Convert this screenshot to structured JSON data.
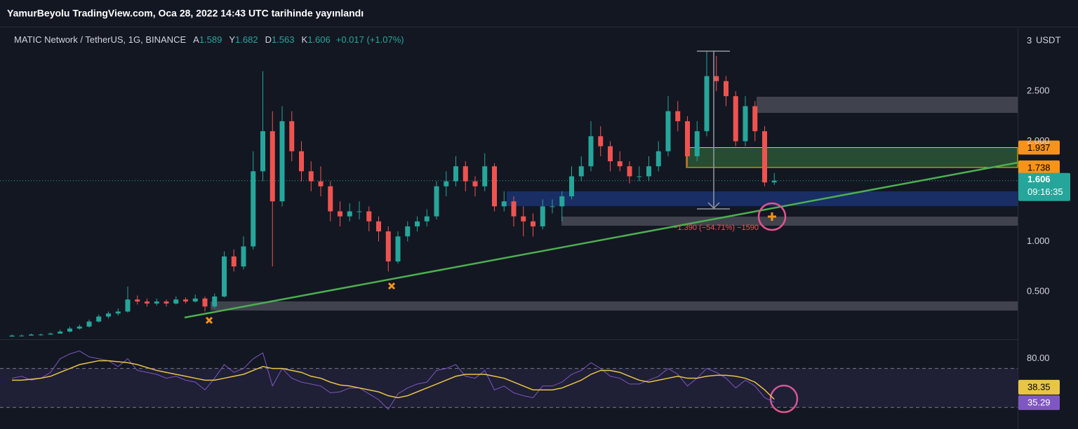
{
  "header": {
    "title": "YamurBeyolu TradingView.com, Oca 28, 2022 14:43 UTC tarihinde yayınlandı"
  },
  "chart_data": {
    "type": "candlestick",
    "title": "MATIC Network / TetherUS, 1G, BINANCE",
    "legend_labels": [
      "A",
      "Y",
      "D",
      "K"
    ],
    "change": "+0.017 (+1.07%)",
    "up_color": "#26a69a",
    "down_color": "#ef5350",
    "ohlc": [
      [
        0.05,
        0.07,
        0.05,
        0.06
      ],
      [
        0.06,
        0.07,
        0.05,
        0.06
      ],
      [
        0.06,
        0.08,
        0.06,
        0.07
      ],
      [
        0.07,
        0.08,
        0.06,
        0.07
      ],
      [
        0.07,
        0.09,
        0.07,
        0.08
      ],
      [
        0.08,
        0.12,
        0.08,
        0.1
      ],
      [
        0.1,
        0.15,
        0.09,
        0.13
      ],
      [
        0.13,
        0.17,
        0.12,
        0.15
      ],
      [
        0.15,
        0.22,
        0.14,
        0.2
      ],
      [
        0.2,
        0.27,
        0.19,
        0.25
      ],
      [
        0.25,
        0.3,
        0.23,
        0.28
      ],
      [
        0.28,
        0.33,
        0.26,
        0.3
      ],
      [
        0.3,
        0.55,
        0.29,
        0.42
      ],
      [
        0.42,
        0.46,
        0.37,
        0.4
      ],
      [
        0.4,
        0.43,
        0.35,
        0.38
      ],
      [
        0.38,
        0.43,
        0.36,
        0.4
      ],
      [
        0.4,
        0.42,
        0.35,
        0.38
      ],
      [
        0.38,
        0.45,
        0.37,
        0.42
      ],
      [
        0.42,
        0.44,
        0.38,
        0.4
      ],
      [
        0.4,
        0.47,
        0.39,
        0.43
      ],
      [
        0.43,
        0.45,
        0.3,
        0.35
      ],
      [
        0.35,
        0.48,
        0.33,
        0.45
      ],
      [
        0.45,
        0.9,
        0.44,
        0.85
      ],
      [
        0.85,
        0.92,
        0.7,
        0.75
      ],
      [
        0.75,
        1.05,
        0.72,
        0.95
      ],
      [
        0.95,
        1.9,
        0.92,
        1.7
      ],
      [
        1.7,
        2.7,
        1.6,
        2.1
      ],
      [
        2.1,
        2.3,
        0.75,
        1.4
      ],
      [
        1.4,
        2.35,
        1.35,
        2.2
      ],
      [
        2.2,
        2.3,
        1.8,
        1.9
      ],
      [
        1.9,
        2.0,
        1.6,
        1.7
      ],
      [
        1.7,
        1.8,
        1.5,
        1.6
      ],
      [
        1.6,
        1.75,
        1.45,
        1.55
      ],
      [
        1.55,
        1.6,
        1.2,
        1.3
      ],
      [
        1.3,
        1.4,
        1.15,
        1.25
      ],
      [
        1.25,
        1.38,
        1.2,
        1.3
      ],
      [
        1.3,
        1.4,
        1.22,
        1.3
      ],
      [
        1.3,
        1.35,
        1.1,
        1.2
      ],
      [
        1.2,
        1.25,
        1.0,
        1.1
      ],
      [
        1.1,
        1.15,
        0.7,
        0.8
      ],
      [
        0.8,
        1.1,
        0.78,
        1.05
      ],
      [
        1.05,
        1.2,
        1.0,
        1.15
      ],
      [
        1.15,
        1.25,
        1.1,
        1.2
      ],
      [
        1.2,
        1.32,
        1.15,
        1.25
      ],
      [
        1.25,
        1.6,
        1.22,
        1.55
      ],
      [
        1.55,
        1.7,
        1.45,
        1.6
      ],
      [
        1.6,
        1.85,
        1.55,
        1.75
      ],
      [
        1.75,
        1.8,
        1.5,
        1.6
      ],
      [
        1.6,
        1.65,
        1.45,
        1.55
      ],
      [
        1.55,
        1.88,
        1.5,
        1.75
      ],
      [
        1.75,
        1.78,
        1.3,
        1.35
      ],
      [
        1.35,
        1.5,
        1.3,
        1.4
      ],
      [
        1.4,
        1.45,
        1.15,
        1.25
      ],
      [
        1.25,
        1.35,
        1.05,
        1.2
      ],
      [
        1.2,
        1.28,
        1.05,
        1.15
      ],
      [
        1.15,
        1.42,
        1.12,
        1.35
      ],
      [
        1.35,
        1.42,
        1.28,
        1.35
      ],
      [
        1.35,
        1.5,
        1.2,
        1.45
      ],
      [
        1.45,
        1.75,
        1.42,
        1.65
      ],
      [
        1.65,
        1.85,
        1.6,
        1.75
      ],
      [
        1.75,
        2.2,
        1.7,
        2.05
      ],
      [
        2.05,
        2.15,
        1.85,
        1.95
      ],
      [
        1.95,
        2.0,
        1.7,
        1.8
      ],
      [
        1.8,
        1.9,
        1.7,
        1.75
      ],
      [
        1.75,
        1.8,
        1.58,
        1.65
      ],
      [
        1.65,
        1.75,
        1.6,
        1.65
      ],
      [
        1.65,
        1.85,
        1.6,
        1.75
      ],
      [
        1.75,
        2.0,
        1.7,
        1.9
      ],
      [
        1.9,
        2.45,
        1.85,
        2.3
      ],
      [
        2.3,
        2.4,
        2.1,
        2.2
      ],
      [
        2.2,
        2.25,
        1.75,
        1.85
      ],
      [
        1.85,
        2.2,
        1.8,
        2.1
      ],
      [
        2.1,
        2.9,
        2.05,
        2.65
      ],
      [
        2.65,
        2.85,
        2.5,
        2.6
      ],
      [
        2.6,
        2.65,
        2.35,
        2.45
      ],
      [
        2.45,
        2.5,
        1.95,
        2.0
      ],
      [
        2.0,
        2.45,
        1.95,
        2.35
      ],
      [
        2.35,
        2.4,
        2.0,
        2.1
      ],
      [
        2.1,
        2.15,
        1.55,
        1.589
      ],
      [
        1.589,
        1.682,
        1.563,
        1.606
      ]
    ],
    "ylim": [
      0.03,
      3.13
    ],
    "yticks": [
      {
        "value": 0.5,
        "label": "0.500"
      },
      {
        "value": 1,
        "label": "1.000"
      },
      {
        "value": 2,
        "label": "2.000"
      },
      {
        "value": 2.5,
        "label": "2.500"
      },
      3
    ],
    "currency": "USDT",
    "price_tags": [
      {
        "value": 1.937,
        "color": "#f7931a"
      },
      {
        "value": 1.738,
        "color": "#f7931a"
      }
    ],
    "countdown": "09:16:35",
    "measure_label": "−1.390 (−54.71%) −1590",
    "rsi": {
      "type": "line",
      "ylim": [
        17.9,
        95.7
      ],
      "yticks": [
        {
          "value": 80,
          "label": "80.00"
        }
      ],
      "bands": [
        30,
        70
      ],
      "series": [
        {
          "color": "#7e57c2",
          "values": [
            60,
            62,
            58,
            60,
            66,
            80,
            85,
            88,
            82,
            80,
            78,
            72,
            80,
            68,
            66,
            64,
            60,
            62,
            58,
            56,
            48,
            60,
            74,
            66,
            70,
            80,
            86,
            52,
            70,
            60,
            56,
            54,
            52,
            45,
            46,
            50,
            50,
            44,
            38,
            28,
            44,
            50,
            54,
            56,
            68,
            70,
            74,
            62,
            60,
            68,
            48,
            52,
            45,
            42,
            40,
            52,
            52,
            56,
            64,
            68,
            76,
            70,
            62,
            60,
            54,
            54,
            58,
            62,
            70,
            64,
            52,
            60,
            70,
            66,
            60,
            50,
            58,
            52,
            40,
            35.29
          ]
        },
        {
          "color": "#e8c547",
          "values": [
            58,
            58,
            59,
            60,
            62,
            66,
            70,
            74,
            76,
            78,
            78,
            77,
            76,
            74,
            71,
            68,
            66,
            64,
            62,
            60,
            58,
            58,
            60,
            62,
            64,
            68,
            72,
            70,
            70,
            68,
            66,
            62,
            60,
            56,
            53,
            52,
            50,
            48,
            46,
            42,
            40,
            42,
            46,
            50,
            54,
            58,
            62,
            64,
            64,
            64,
            62,
            60,
            56,
            52,
            48,
            48,
            48,
            50,
            54,
            58,
            64,
            68,
            68,
            66,
            62,
            58,
            56,
            58,
            60,
            62,
            60,
            60,
            62,
            63,
            63,
            62,
            60,
            56,
            48,
            38.35
          ]
        }
      ]
    }
  }
}
